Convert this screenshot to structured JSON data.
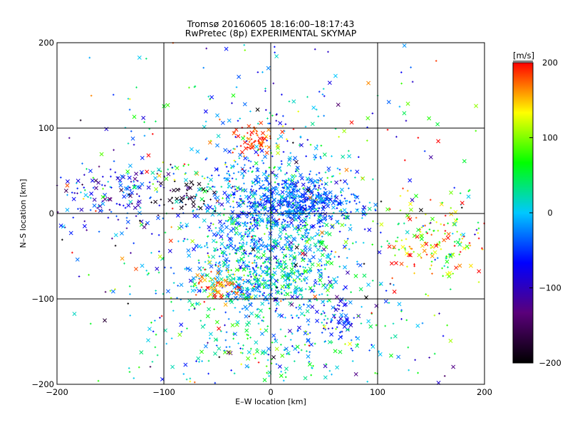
{
  "chart_data": {
    "type": "scatter",
    "title": "Tromsø 20160605 18:16:00–18:17:43",
    "subtitle": "RwPretec (8p) EXPERIMENTAL SKYMAP",
    "xlabel": "E–W location [km]",
    "ylabel": "N–S location [km]",
    "xlim": [
      -200,
      200
    ],
    "ylim": [
      -200,
      200
    ],
    "x_ticks": [
      "−200",
      "−100",
      "0",
      "100",
      "200"
    ],
    "y_ticks": [
      "−200",
      "−100",
      "0",
      "100",
      "200"
    ],
    "x_tick_values": [
      -200,
      -100,
      0,
      100,
      200
    ],
    "y_tick_values": [
      -200,
      -100,
      0,
      100,
      200
    ],
    "grid_values": [
      -100,
      0,
      100
    ],
    "grid": true,
    "marker_styles": [
      "x",
      "+"
    ],
    "colorbar": {
      "label": "[m/s]",
      "range": [
        -200,
        200
      ],
      "ticks": [
        "200",
        "100",
        "0",
        "−100",
        "−200"
      ],
      "tick_values": [
        200,
        100,
        0,
        -100,
        -200
      ],
      "colormap": [
        "#000000",
        "#5a007a",
        "#0000ff",
        "#00c8ff",
        "#00ff00",
        "#ffff00",
        "#ff0000"
      ]
    },
    "clusters": [
      {
        "x": 0,
        "y": -20,
        "sx": 40,
        "sy": 55,
        "n": 1100,
        "v": -10,
        "sv": 45
      },
      {
        "x": 25,
        "y": 15,
        "sx": 28,
        "sy": 14,
        "n": 450,
        "v": -40,
        "sv": 25
      },
      {
        "x": -10,
        "y": -80,
        "sx": 35,
        "sy": 14,
        "n": 280,
        "v": 10,
        "sv": 40
      },
      {
        "x": -50,
        "y": -85,
        "sx": 12,
        "sy": 8,
        "n": 60,
        "v": 170,
        "sv": 20
      },
      {
        "x": -15,
        "y": 85,
        "sx": 8,
        "sy": 10,
        "n": 70,
        "v": 185,
        "sv": 15
      },
      {
        "x": 155,
        "y": -35,
        "sx": 22,
        "sy": 22,
        "n": 150,
        "v": 120,
        "sv": 70
      },
      {
        "x": -150,
        "y": 20,
        "sx": 30,
        "sy": 18,
        "n": 150,
        "v": -70,
        "sv": 60
      },
      {
        "x": -80,
        "y": 20,
        "sx": 15,
        "sy": 10,
        "n": 40,
        "v": -190,
        "sv": 15
      },
      {
        "x": 65,
        "y": -120,
        "sx": 10,
        "sy": 12,
        "n": 50,
        "v": -70,
        "sv": 30
      },
      {
        "x": 0,
        "y": -160,
        "sx": 60,
        "sy": 25,
        "n": 180,
        "v": 20,
        "sv": 45
      },
      {
        "x": 0,
        "y": 0,
        "sx": 140,
        "sy": 120,
        "n": 600,
        "v": 10,
        "sv": 110
      }
    ]
  }
}
